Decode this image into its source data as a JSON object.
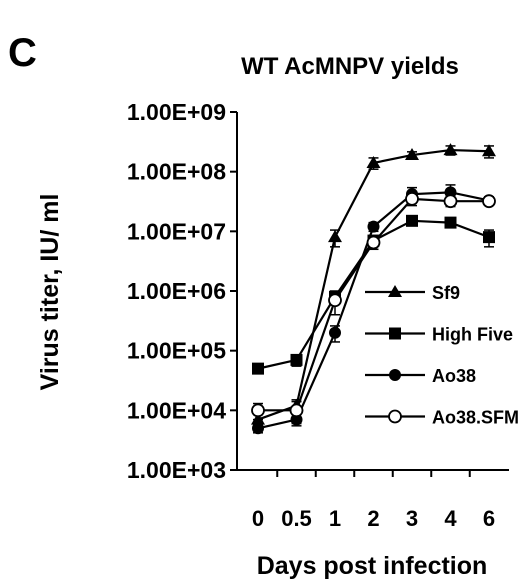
{
  "panel_letter": "C",
  "chart_data": {
    "type": "line",
    "title": "WT AcMNPV yields",
    "xlabel": "Days post infection",
    "ylabel": "Virus titer, IU/ ml",
    "y_scale": "log",
    "ylim": [
      1000,
      1000000000
    ],
    "y_ticks": [
      {
        "value": 1000,
        "label": "1.00E+03"
      },
      {
        "value": 10000,
        "label": "1.00E+04"
      },
      {
        "value": 100000,
        "label": "1.00E+05"
      },
      {
        "value": 1000000,
        "label": "1.00E+06"
      },
      {
        "value": 10000000,
        "label": "1.00E+07"
      },
      {
        "value": 100000000,
        "label": "1.00E+08"
      },
      {
        "value": 1000000000,
        "label": "1.00E+09"
      }
    ],
    "categories": [
      "0",
      "0.5",
      "1",
      "2",
      "3",
      "4",
      "6"
    ],
    "legend_position": "right",
    "grid": false,
    "series": [
      {
        "name": "Sf9",
        "marker": "triangle",
        "values": [
          7000,
          12000,
          8000000,
          140000000,
          190000000,
          230000000,
          220000000
        ],
        "errors": [
          1500,
          3000,
          2500000,
          30000000,
          25000000,
          40000000,
          50000000
        ]
      },
      {
        "name": "High Five",
        "marker": "square",
        "values": [
          50000,
          70000,
          800000,
          7000000,
          15000000,
          14000000,
          8000000
        ],
        "errors": [
          8000,
          15000,
          150000,
          1500000,
          2000000,
          2000000,
          2500000
        ]
      },
      {
        "name": "Ao38",
        "marker": "circle",
        "values": [
          5000,
          7000,
          200000,
          12000000,
          42000000,
          45000000,
          33000000
        ],
        "errors": [
          800,
          1500,
          60000,
          2000000,
          12000000,
          15000000,
          5000000
        ]
      },
      {
        "name": "Ao38.SFM",
        "marker": "open-circle",
        "values": [
          10000,
          10000,
          700000,
          6500000,
          35000000,
          32000000,
          32000000
        ],
        "errors": [
          3000,
          4000,
          300000,
          1500000,
          8000000,
          6000000,
          4000000
        ]
      }
    ]
  }
}
